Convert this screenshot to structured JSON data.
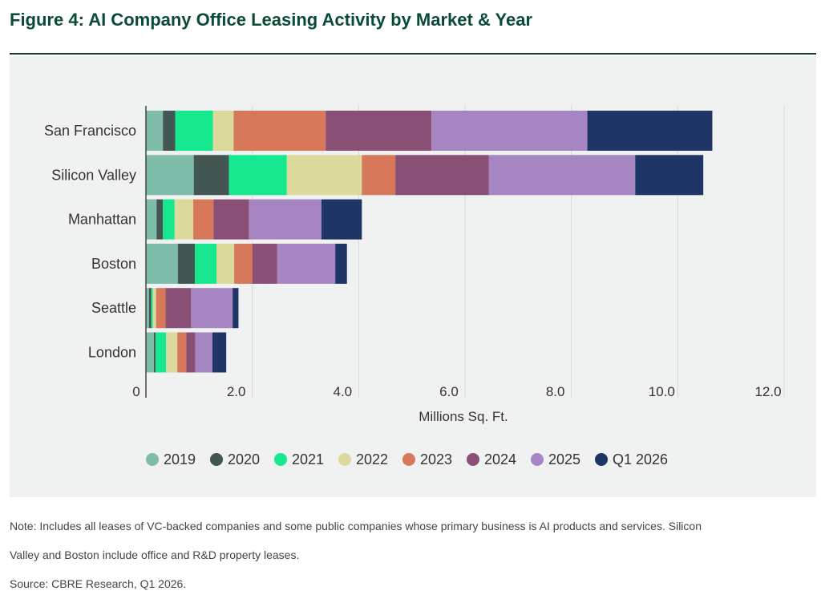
{
  "figure": {
    "title": "Figure 4: AI Company Office Leasing Activity by Market & Year",
    "note_line1": "Note: Includes all leases of VC-backed companies and some public companies whose primary business is AI products and services. Silicon",
    "note_line2": "Valley and Boston include office and R&D property leases.",
    "source": "Source: CBRE Research, Q1 2026."
  },
  "chart_data": {
    "type": "bar",
    "orientation": "horizontal",
    "stacked": true,
    "title": "Figure 4: AI Company Office Leasing Activity by Market & Year",
    "xlabel": "Millions Sq. Ft.",
    "ylabel": "",
    "xlim": [
      0,
      12
    ],
    "x_ticks": [
      0,
      2,
      4,
      6,
      8,
      10,
      12
    ],
    "x_tick_labels": [
      "0",
      "2.0",
      "4.0",
      "6.0",
      "8.0",
      "10.0",
      "12.0"
    ],
    "grid": "vertical",
    "legend_position": "bottom",
    "categories": [
      "San Francisco",
      "Silicon Valley",
      "Manhattan",
      "Boston",
      "Seattle",
      "London"
    ],
    "series": [
      {
        "name": "2019",
        "color": "#7fbcaa",
        "values": [
          0.32,
          0.9,
          0.2,
          0.6,
          0.06,
          0.15
        ]
      },
      {
        "name": "2020",
        "color": "#435651",
        "values": [
          0.23,
          0.66,
          0.12,
          0.32,
          0.04,
          0.03
        ]
      },
      {
        "name": "2021",
        "color": "#17e88f",
        "values": [
          0.71,
          1.09,
          0.22,
          0.41,
          0.03,
          0.2
        ]
      },
      {
        "name": "2022",
        "color": "#dbd99b",
        "values": [
          0.39,
          1.41,
          0.35,
          0.33,
          0.06,
          0.21
        ]
      },
      {
        "name": "2023",
        "color": "#d8785a",
        "values": [
          1.73,
          0.63,
          0.38,
          0.34,
          0.18,
          0.17
        ]
      },
      {
        "name": "2024",
        "color": "#8a4f75",
        "values": [
          1.99,
          1.76,
          0.67,
          0.47,
          0.48,
          0.17
        ]
      },
      {
        "name": "2025",
        "color": "#a586c3",
        "values": [
          2.93,
          2.75,
          1.36,
          1.09,
          0.78,
          0.32
        ]
      },
      {
        "name": "Q1 2026",
        "color": "#1f3566",
        "values": [
          2.35,
          1.28,
          0.76,
          0.22,
          0.11,
          0.26
        ]
      }
    ]
  }
}
